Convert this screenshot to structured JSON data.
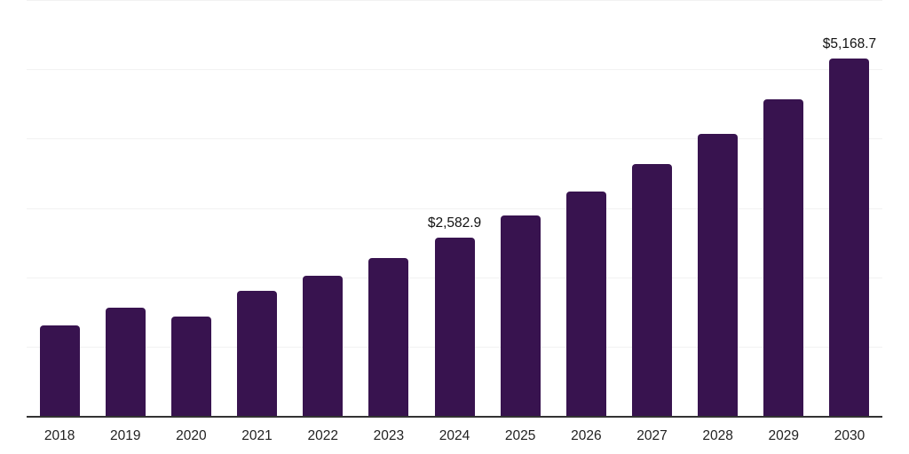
{
  "chart_data": {
    "type": "bar",
    "categories": [
      "2018",
      "2019",
      "2020",
      "2021",
      "2022",
      "2023",
      "2024",
      "2025",
      "2026",
      "2027",
      "2028",
      "2029",
      "2030"
    ],
    "values": [
      1315,
      1570,
      1445,
      1815,
      2040,
      2295,
      2582.9,
      2900,
      3255,
      3650,
      4085,
      4580,
      5168.7
    ],
    "value_labels": [
      "",
      "",
      "",
      "",
      "",
      "",
      "$2,582.9",
      "",
      "",
      "",
      "",
      "",
      "$5,168.7"
    ],
    "xlabel": "",
    "ylabel": "",
    "ylim": [
      0,
      6000
    ],
    "grid_step": 1000,
    "grid": true,
    "legend": false,
    "bar_color": "#38134F",
    "grid_color": "#f2f2f2",
    "axis_color": "#333333",
    "data_label_color": "#111111",
    "tick_label_color": "#222222",
    "background_color": "#ffffff"
  }
}
